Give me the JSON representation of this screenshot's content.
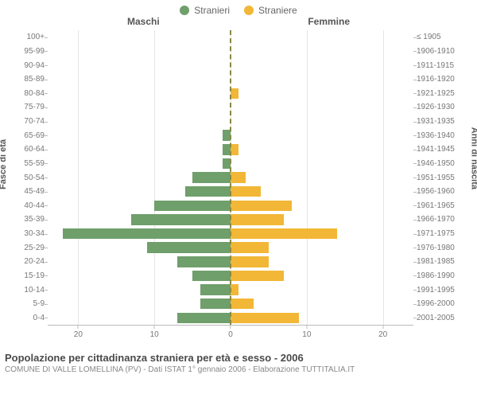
{
  "legend": {
    "male": {
      "label": "Stranieri",
      "color": "#6f9f6b"
    },
    "female": {
      "label": "Straniere",
      "color": "#f2b736"
    }
  },
  "panels": {
    "left_title": "Maschi",
    "right_title": "Femmine"
  },
  "y_title_left": "Fasce di età",
  "y_title_right": "Anni di nascita",
  "x_axis": {
    "max": 24,
    "ticks": [
      20,
      10,
      0,
      10,
      20
    ],
    "grid_color": "#e6e6e6",
    "axis_color": "#bbbbbb"
  },
  "colors": {
    "background": "#ffffff",
    "text": "#555555",
    "center_dash": "#888844"
  },
  "rows": [
    {
      "age": "100+",
      "birth": "≤ 1905",
      "m": 0,
      "f": 0
    },
    {
      "age": "95-99",
      "birth": "1906-1910",
      "m": 0,
      "f": 0
    },
    {
      "age": "90-94",
      "birth": "1911-1915",
      "m": 0,
      "f": 0
    },
    {
      "age": "85-89",
      "birth": "1916-1920",
      "m": 0,
      "f": 0
    },
    {
      "age": "80-84",
      "birth": "1921-1925",
      "m": 0,
      "f": 1
    },
    {
      "age": "75-79",
      "birth": "1926-1930",
      "m": 0,
      "f": 0
    },
    {
      "age": "70-74",
      "birth": "1931-1935",
      "m": 0,
      "f": 0
    },
    {
      "age": "65-69",
      "birth": "1936-1940",
      "m": 1,
      "f": 0
    },
    {
      "age": "60-64",
      "birth": "1941-1945",
      "m": 1,
      "f": 1
    },
    {
      "age": "55-59",
      "birth": "1946-1950",
      "m": 1,
      "f": 0
    },
    {
      "age": "50-54",
      "birth": "1951-1955",
      "m": 5,
      "f": 2
    },
    {
      "age": "45-49",
      "birth": "1956-1960",
      "m": 6,
      "f": 4
    },
    {
      "age": "40-44",
      "birth": "1961-1965",
      "m": 10,
      "f": 8
    },
    {
      "age": "35-39",
      "birth": "1966-1970",
      "m": 13,
      "f": 7
    },
    {
      "age": "30-34",
      "birth": "1971-1975",
      "m": 22,
      "f": 14
    },
    {
      "age": "25-29",
      "birth": "1976-1980",
      "m": 11,
      "f": 5
    },
    {
      "age": "20-24",
      "birth": "1981-1985",
      "m": 7,
      "f": 5
    },
    {
      "age": "15-19",
      "birth": "1986-1990",
      "m": 5,
      "f": 7
    },
    {
      "age": "10-14",
      "birth": "1991-1995",
      "m": 4,
      "f": 1
    },
    {
      "age": "5-9",
      "birth": "1996-2000",
      "m": 4,
      "f": 3
    },
    {
      "age": "0-4",
      "birth": "2001-2005",
      "m": 7,
      "f": 9
    }
  ],
  "footer": {
    "title": "Popolazione per cittadinanza straniera per età e sesso - 2006",
    "subtitle": "COMUNE DI VALLE LOMELLINA (PV) - Dati ISTAT 1° gennaio 2006 - Elaborazione TUTTITALIA.IT"
  }
}
